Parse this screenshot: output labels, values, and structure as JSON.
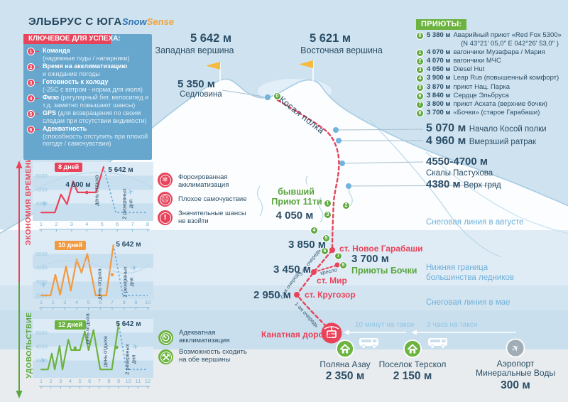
{
  "title": "ЭЛЬБРУС С ЮГА",
  "logo": {
    "part1": "Snow",
    "part2": "Sense"
  },
  "colors": {
    "accent_red": "#e8435a",
    "accent_green": "#6cb33f",
    "accent_orange": "#f29a3f",
    "navy": "#2a4d66",
    "sky": "#cfe2ef",
    "band_blue": "#c9dfee",
    "light_blue_text": "#8fc5e4"
  },
  "key_box": {
    "header": "КЛЮЧЕВОЕ ДЛЯ УСПЕХА:",
    "items": [
      {
        "num": "1",
        "title": "Команда",
        "desc": "(надежные гиды / напарники)",
        "inline": false
      },
      {
        "num": "2",
        "title": "Время на акклиматизацию",
        "desc": "и ожидание погоды",
        "inline": false
      },
      {
        "num": "3",
        "title": "Готовность к холоду",
        "desc": "(-25С с ветром - норма для июля)",
        "inline": false
      },
      {
        "num": "4",
        "title": "Физо",
        "desc": "(регулярный бег, велосипед и т.д. заметно повышают шансы)",
        "inline": true
      },
      {
        "num": "5",
        "title": "GPS",
        "desc": "(для возвращения по своим следам при отсутствии видимости)",
        "inline": true
      },
      {
        "num": "6",
        "title": "Адекватность",
        "desc": "(способность отступить при плохой погоде / самочувствии)",
        "inline": false
      }
    ]
  },
  "huts": {
    "header": "ПРИЮТЫ:",
    "items": [
      {
        "num": "0",
        "elevation": "5 380 м",
        "name": "Аварийный приют «Red Fox 5300»",
        "extra": "(N 43°21' 05,0\"  E 042°26' 53,0\" )"
      },
      {
        "num": "1",
        "elevation": "4 070 м",
        "name": "вагончики Музафара / Мария",
        "extra": ""
      },
      {
        "num": "2",
        "elevation": "4 070 м",
        "name": "вагончики МЧС",
        "extra": ""
      },
      {
        "num": "3",
        "elevation": "4 050 м",
        "name": "Diesel Hut",
        "extra": ""
      },
      {
        "num": "4",
        "elevation": "3 900 м",
        "name": "Leap Rus (повышенный комфорт)",
        "extra": ""
      },
      {
        "num": "5",
        "elevation": "3 870 м",
        "name": "приют Нац. Парка",
        "extra": ""
      },
      {
        "num": "6",
        "elevation": "3 840 м",
        "name": "Сердце Эльбруса",
        "extra": ""
      },
      {
        "num": "7",
        "elevation": "3 800 м",
        "name": "приют Асхата (верхние бочки)",
        "extra": ""
      },
      {
        "num": "8",
        "elevation": "3 700 м",
        "name": "«Бочки» (старое Гарабаши)",
        "extra": ""
      }
    ]
  },
  "peaks": {
    "west": {
      "elevation": "5 642 м",
      "name": "Западная вершина"
    },
    "east": {
      "elevation": "5 621 м",
      "name": "Восточная вершина"
    },
    "saddle": {
      "elevation": "5 350 м",
      "name": "Седловина"
    },
    "kosaya": "Косая полка"
  },
  "right_labels": [
    {
      "elevation": "5 070 м",
      "name": "Начало Косой полки"
    },
    {
      "elevation": "4 960 м",
      "name": "Вмерзший ратрак"
    },
    {
      "elevation": "4550-4700 м",
      "name": "Скалы Пастухова"
    },
    {
      "elevation": "4380 м",
      "name": "Верх гряд"
    }
  ],
  "zones": {
    "august": "Снеговая линия в августе",
    "glacier_line1": "Нижняя граница",
    "glacier_line2": "большинства ледников",
    "may": "Снеговая линия в мае"
  },
  "map": {
    "pr11": {
      "line1": "бывший",
      "line2": "Приют 11ти",
      "elevation": "4 050 м"
    },
    "garabashi": {
      "elevation": "3 850 м",
      "station": "ст. Новое Гарабаши"
    },
    "bochki": {
      "elevation": "3 700 м",
      "label": "Приюты Бочки"
    },
    "mir": {
      "elevation": "3 450 м",
      "station": "ст. Мир"
    },
    "krugozor": {
      "elevation": "2 950 м",
      "station": "ст. Кругозор"
    },
    "cable": "Канатная дорога",
    "queues": {
      "q1": "1-ая очередь",
      "q2": "2-ая очередь",
      "q3": "3-ая очередь",
      "chair": "кресло"
    }
  },
  "legend": {
    "negative": [
      {
        "icon": "snowflake-icon",
        "line1": "Форсированная",
        "line2": "акклиматизация"
      },
      {
        "icon": "sad-face-icon",
        "line1": "Плохое самочувствие",
        "line2": ""
      },
      {
        "icon": "exclamation-icon",
        "line1": "Значительные шансы",
        "line2": "не взойти"
      }
    ],
    "positive": [
      {
        "icon": "gauge-icon",
        "line1": "Адекватная",
        "line2": "акклиматизация"
      },
      {
        "icon": "crossed-axes-icon",
        "line1": "Возможность сходить",
        "line2": "на обе вершины"
      }
    ]
  },
  "axis": {
    "top": "ЭКОНОМИЯ ВРЕМЕНИ",
    "bottom": "УДОВОЛЬСТВИЕ"
  },
  "bottom": {
    "taxi1": "10 минут на такси",
    "taxi2": "3 часа на такси",
    "places": [
      {
        "name": "Поляна Азау",
        "name2": "",
        "elevation": "2 350 м"
      },
      {
        "name": "Поселок Терскол",
        "name2": "",
        "elevation": "2 150 м"
      },
      {
        "name": "Аэропорт",
        "name2": "Минеральные Воды",
        "elevation": "300 м"
      }
    ]
  },
  "chart_data": [
    {
      "type": "line",
      "title": "8 дней",
      "color": "#e8435a",
      "days": 8,
      "xlabel": "дни",
      "ylabel": "высота, м",
      "ylim": [
        2000,
        5800
      ],
      "ylabel_ticks": [
        5000,
        4000,
        3000
      ],
      "series_day_elevation": [
        [
          1,
          2350
        ],
        [
          1.9,
          2350
        ],
        [
          2.3,
          3650
        ],
        [
          2.7,
          2950
        ],
        [
          3.1,
          4600
        ],
        [
          3.4,
          3800
        ],
        [
          4.6,
          3800
        ],
        [
          5.1,
          5642
        ]
      ],
      "reserve_dashed": [
        [
          5.1,
          5642
        ],
        [
          5.9,
          2350
        ],
        [
          8,
          2350
        ]
      ],
      "annotations": [
        {
          "text": "4 600 м",
          "day": 3.1,
          "elevation": 4600
        },
        {
          "text": "5 642 м",
          "day": 5.1,
          "elevation": 5642
        }
      ],
      "rest_labels": [
        {
          "text": "день отдыха",
          "day": 4
        }
      ],
      "reserve_label": {
        "text": "2 резервных дня",
        "days": "6-7"
      },
      "dots": [
        [
          4.0,
          3800
        ]
      ],
      "planes": [
        [
          1.25,
          2800
        ],
        [
          6.9,
          3650
        ]
      ]
    },
    {
      "type": "line",
      "title": "10 дней",
      "color": "#f29a3f",
      "days": 10,
      "xlabel": "дни",
      "ylabel": "высота, м",
      "ylim": [
        2000,
        5800
      ],
      "ylabel_ticks": [
        5000,
        4000,
        3000,
        2000
      ],
      "series_day_elevation": [
        [
          1,
          2000
        ],
        [
          1.8,
          2000
        ],
        [
          2.2,
          3500
        ],
        [
          2.6,
          2050
        ],
        [
          3.1,
          4100
        ],
        [
          3.5,
          2350
        ],
        [
          4.0,
          4600
        ],
        [
          4.4,
          3650
        ],
        [
          4.9,
          5000
        ],
        [
          5.6,
          2000
        ],
        [
          6.5,
          2000
        ],
        [
          7.1,
          5642
        ]
      ],
      "reserve_dashed": [
        [
          7.1,
          5642
        ],
        [
          7.9,
          2000
        ],
        [
          10,
          2000
        ]
      ],
      "annotations": [
        {
          "text": "5 642 м",
          "day": 7.1,
          "elevation": 5642
        }
      ],
      "rest_labels": [
        {
          "text": "день отдыха",
          "day": 6
        }
      ],
      "reserve_label": {
        "text": "2 резервных дня",
        "days": "8-9"
      },
      "dots": [
        [
          7.0,
          3500
        ]
      ],
      "planes": [
        [
          1.25,
          2600
        ],
        [
          8.9,
          3800
        ]
      ]
    },
    {
      "type": "line",
      "title": "12 дней",
      "color": "#6cb33f",
      "days": 12,
      "xlabel": "дни",
      "ylabel": "высота, м",
      "ylim": [
        2000,
        5800
      ],
      "ylabel_ticks": [
        5000,
        4000,
        3000
      ],
      "series_day_elevation": [
        [
          1,
          2350
        ],
        [
          1.7,
          2350
        ],
        [
          2.1,
          3500
        ],
        [
          2.4,
          2350
        ],
        [
          2.9,
          4050
        ],
        [
          3.2,
          2350
        ],
        [
          3.8,
          4500
        ],
        [
          4.1,
          3750
        ],
        [
          5.0,
          3750
        ],
        [
          5.5,
          5100
        ],
        [
          5.9,
          3750
        ],
        [
          6.4,
          5200
        ],
        [
          7.1,
          2350
        ],
        [
          8.3,
          2350
        ],
        [
          9.0,
          5642
        ]
      ],
      "reserve_dashed": [
        [
          9.0,
          5642
        ],
        [
          9.8,
          2350
        ],
        [
          12,
          2350
        ]
      ],
      "annotations": [
        {
          "text": "5 642 м",
          "day": 9,
          "elevation": 5642
        }
      ],
      "rest_labels": [
        {
          "text": "день отдыха",
          "day": 5
        },
        {
          "text": "день отдыха",
          "day": 7.7
        }
      ],
      "reserve_label": {
        "text": "2 резервных дня",
        "days": "10-11"
      },
      "dots": [
        [
          4.5,
          3900
        ],
        [
          8.8,
          3950
        ]
      ],
      "planes": [
        [
          1.25,
          2800
        ],
        [
          10.8,
          3800
        ]
      ]
    }
  ]
}
